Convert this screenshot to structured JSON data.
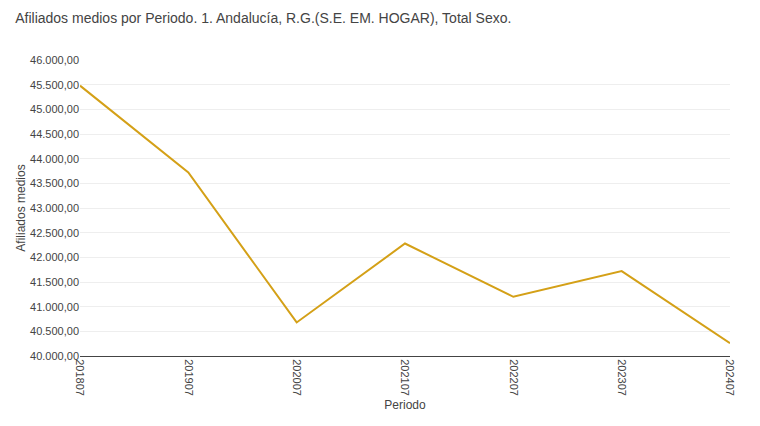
{
  "chart_data": {
    "type": "line",
    "title": "Afiliados medios por Periodo. 1. Andalucía, R.G.(S.E. EM. HOGAR), Total Sexo.",
    "xlabel": "Periodo",
    "ylabel": "Afiliados medios",
    "categories": [
      "201807",
      "201907",
      "202007",
      "202107",
      "202207",
      "202307",
      "202407"
    ],
    "values": [
      45480,
      43720,
      40680,
      42280,
      41200,
      41720,
      40260
    ],
    "color": "#D4A017",
    "ylim": [
      40000,
      46000
    ],
    "yticks": [
      {
        "value": 40000,
        "label": "40.000,00"
      },
      {
        "value": 40500,
        "label": "40.500,00"
      },
      {
        "value": 41000,
        "label": "41.000,00"
      },
      {
        "value": 41500,
        "label": "41.500,00"
      },
      {
        "value": 42000,
        "label": "42.000,00"
      },
      {
        "value": 42500,
        "label": "42.500,00"
      },
      {
        "value": 43000,
        "label": "43.000,00"
      },
      {
        "value": 43500,
        "label": "43.500,00"
      },
      {
        "value": 44000,
        "label": "44.000,00"
      },
      {
        "value": 44500,
        "label": "44.500,00"
      },
      {
        "value": 45000,
        "label": "45.000,00"
      },
      {
        "value": 45500,
        "label": "45.500,00"
      },
      {
        "value": 46000,
        "label": "46.000,00"
      }
    ],
    "grid": true
  }
}
